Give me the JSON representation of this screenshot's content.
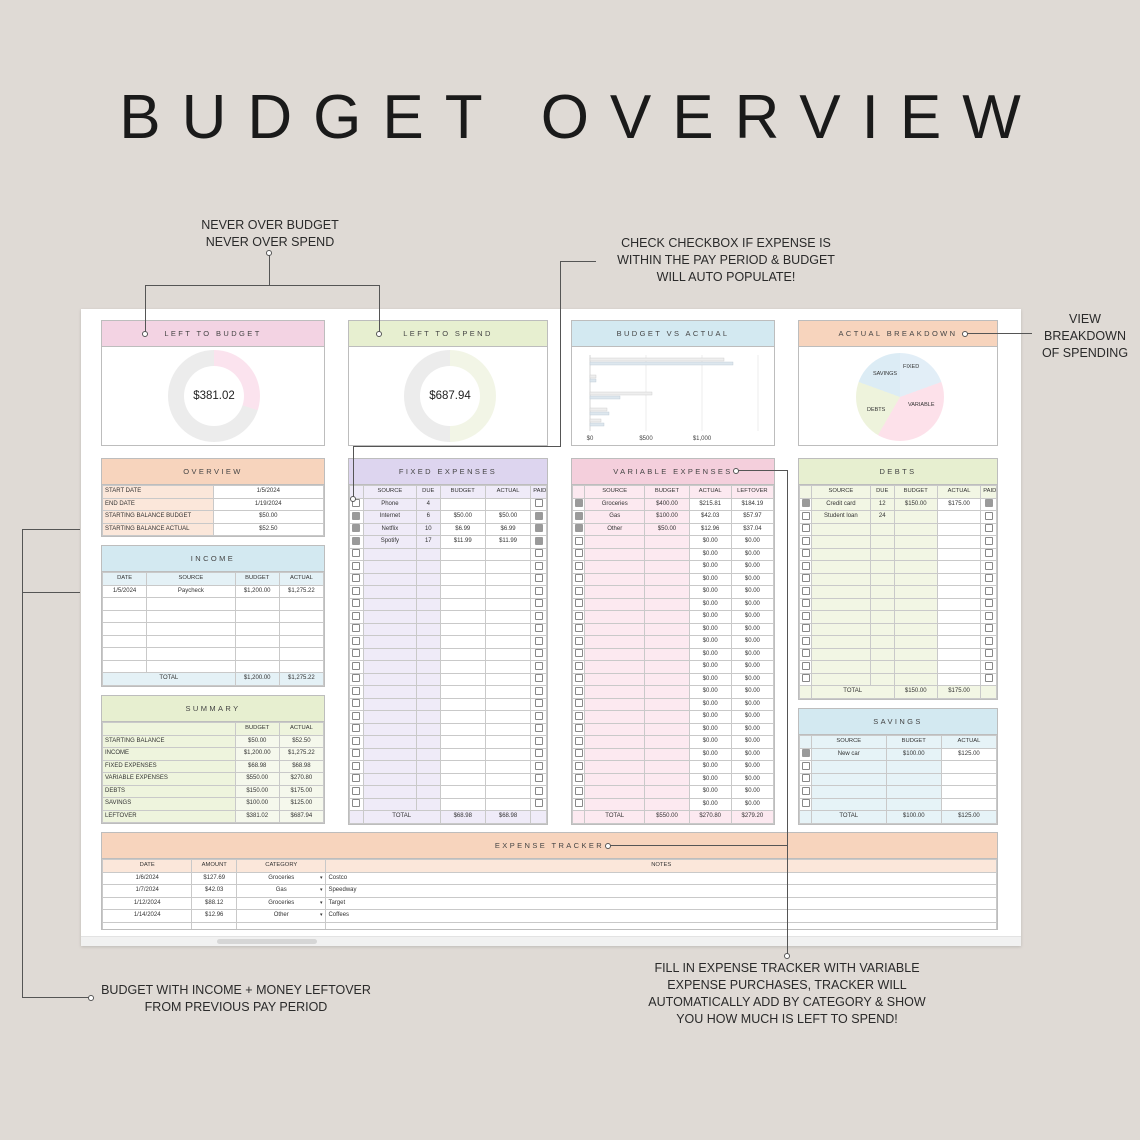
{
  "title": "BUDGET OVERVIEW",
  "annotations": {
    "never_over": "NEVER OVER BUDGET\nNEVER OVER SPEND",
    "checkbox": "CHECK CHECKBOX IF EXPENSE IS\nWITHIN THE PAY PERIOD & BUDGET\nWILL AUTO POPULATE!",
    "view": "VIEW\nBREAKDOWN\nOF SPENDING",
    "budget_income": "BUDGET WITH INCOME + MONEY LEFTOVER\nFROM PREVIOUS PAY PERIOD",
    "tracker": "FILL IN EXPENSE TRACKER WITH VARIABLE\nEXPENSE PURCHASES, TRACKER WILL\nAUTOMATICALLY ADD BY CATEGORY & SHOW\nYOU HOW MUCH IS LEFT TO SPEND!"
  },
  "colors": {
    "pink": "#f3d3e3",
    "green": "#e7efd0",
    "blue": "#d3e9f1",
    "orange": "#f7d4bd",
    "purple": "#ddd5ef",
    "rose": "#f4cfdc"
  },
  "left_to_budget": {
    "label": "LEFT TO BUDGET",
    "value": "$381.02",
    "fraction": 0.3
  },
  "left_to_spend": {
    "label": "LEFT TO SPEND",
    "value": "$687.94",
    "fraction": 0.5
  },
  "budget_vs_actual": {
    "label": "BUDGET VS ACTUAL",
    "ticks": [
      "$0",
      "$500",
      "$1,000"
    ]
  },
  "actual_breakdown": {
    "label": "ACTUAL BREAKDOWN",
    "slices": [
      "FIXED",
      "SAVINGS",
      "DEBTS",
      "VARIABLE"
    ]
  },
  "overview": {
    "label": "OVERVIEW",
    "rows": [
      {
        "k": "START DATE",
        "v": "1/5/2024"
      },
      {
        "k": "END DATE",
        "v": "1/19/2024"
      },
      {
        "k": "STARTING BALANCE BUDGET",
        "v": "$50.00"
      },
      {
        "k": "STARTING BALANCE ACTUAL",
        "v": "$52.50"
      }
    ]
  },
  "income": {
    "label": "INCOME",
    "cols": [
      "DATE",
      "SOURCE",
      "BUDGET",
      "ACTUAL"
    ],
    "rows": [
      [
        "1/5/2024",
        "Paycheck",
        "$1,200.00",
        "$1,275.22"
      ]
    ],
    "total": [
      "TOTAL",
      "$1,200.00",
      "$1,275.22"
    ]
  },
  "summary": {
    "label": "SUMMARY",
    "cols": [
      "BUDGET",
      "ACTUAL"
    ],
    "rows": [
      {
        "k": "STARTING BALANCE",
        "b": "$50.00",
        "a": "$52.50"
      },
      {
        "k": "INCOME",
        "b": "$1,200.00",
        "a": "$1,275.22"
      },
      {
        "k": "FIXED EXPENSES",
        "b": "$68.98",
        "a": "$68.98"
      },
      {
        "k": "VARIABLE EXPENSES",
        "b": "$550.00",
        "a": "$270.80"
      },
      {
        "k": "DEBTS",
        "b": "$150.00",
        "a": "$175.00"
      },
      {
        "k": "SAVINGS",
        "b": "$100.00",
        "a": "$125.00"
      },
      {
        "k": "LEFTOVER",
        "b": "$381.02",
        "a": "$687.94"
      }
    ]
  },
  "fixed": {
    "label": "FIXED EXPENSES",
    "cols": [
      "SOURCE",
      "DUE",
      "BUDGET",
      "ACTUAL",
      "PAID"
    ],
    "rows": [
      {
        "c": false,
        "s": "Phone",
        "d": "4",
        "b": "",
        "a": "",
        "p": false
      },
      {
        "c": true,
        "s": "Internet",
        "d": "6",
        "b": "$50.00",
        "a": "$50.00",
        "p": true
      },
      {
        "c": true,
        "s": "Netflix",
        "d": "10",
        "b": "$6.99",
        "a": "$6.99",
        "p": true
      },
      {
        "c": true,
        "s": "Spotify",
        "d": "17",
        "b": "$11.99",
        "a": "$11.99",
        "p": true
      }
    ],
    "total": [
      "TOTAL",
      "$68.98",
      "$68.98"
    ]
  },
  "variable": {
    "label": "VARIABLE EXPENSES",
    "cols": [
      "SOURCE",
      "BUDGET",
      "ACTUAL",
      "LEFTOVER"
    ],
    "rows": [
      {
        "c": true,
        "s": "Groceries",
        "b": "$400.00",
        "a": "$215.81",
        "l": "$184.19"
      },
      {
        "c": true,
        "s": "Gas",
        "b": "$100.00",
        "a": "$42.03",
        "l": "$57.97"
      },
      {
        "c": true,
        "s": "Other",
        "b": "$50.00",
        "a": "$12.96",
        "l": "$37.04"
      }
    ],
    "empty_amount": "$0.00",
    "total": [
      "TOTAL",
      "$550.00",
      "$270.80",
      "$279.20"
    ]
  },
  "debts": {
    "label": "DEBTS",
    "cols": [
      "SOURCE",
      "DUE",
      "BUDGET",
      "ACTUAL",
      "PAID"
    ],
    "rows": [
      {
        "c": true,
        "s": "Credit card",
        "d": "12",
        "b": "$150.00",
        "a": "$175.00",
        "p": true
      },
      {
        "c": false,
        "s": "Student loan",
        "d": "24",
        "b": "",
        "a": "",
        "p": false
      }
    ],
    "total": [
      "TOTAL",
      "$150.00",
      "$175.00"
    ]
  },
  "savings": {
    "label": "SAVINGS",
    "cols": [
      "SOURCE",
      "BUDGET",
      "ACTUAL"
    ],
    "rows": [
      {
        "c": true,
        "s": "New car",
        "b": "$100.00",
        "a": "$125.00"
      }
    ],
    "total": [
      "TOTAL",
      "$100.00",
      "$125.00"
    ]
  },
  "tracker": {
    "label": "EXPENSE TRACKER",
    "cols": [
      "DATE",
      "AMOUNT",
      "CATEGORY",
      "NOTES"
    ],
    "rows": [
      [
        "1/6/2024",
        "$127.69",
        "Groceries",
        "Costco"
      ],
      [
        "1/7/2024",
        "$42.03",
        "Gas",
        "Speedway"
      ],
      [
        "1/12/2024",
        "$88.12",
        "Groceries",
        "Target"
      ],
      [
        "1/14/2024",
        "$12.96",
        "Other",
        "Coffees"
      ]
    ]
  }
}
